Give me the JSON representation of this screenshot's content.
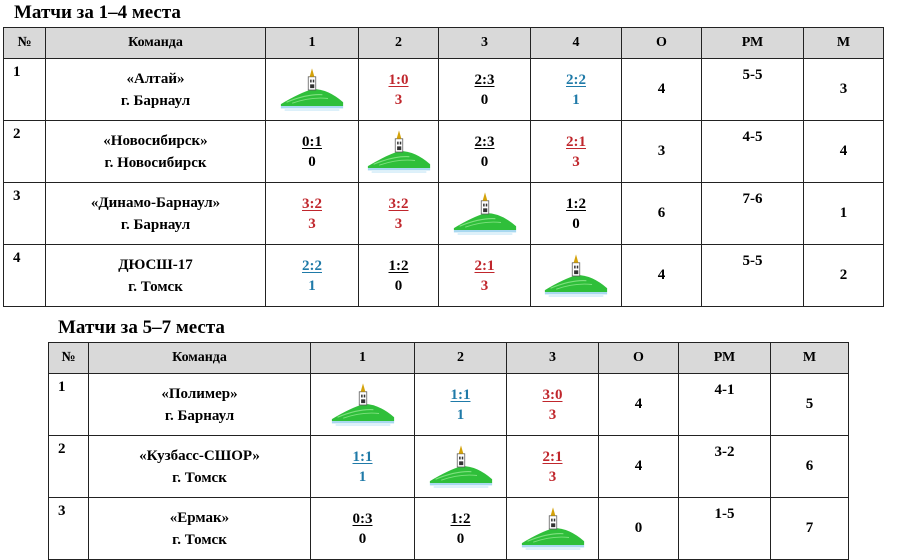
{
  "table1": {
    "title": "Матчи за 1–4 места",
    "headers": [
      "№",
      "Команда",
      "1",
      "2",
      "3",
      "4",
      "О",
      "РМ",
      "М"
    ],
    "rows": [
      {
        "num": "1",
        "team": "«Алтай»",
        "city": "г. Барнаул",
        "cells": [
          null,
          {
            "score": "1:0",
            "pts": "3",
            "color": "red"
          },
          {
            "score": "2:3",
            "pts": "0",
            "color": "black"
          },
          {
            "score": "2:2",
            "pts": "1",
            "color": "blue"
          }
        ],
        "points": "4",
        "goals": "5-5",
        "place": "3"
      },
      {
        "num": "2",
        "team": "«Новосибирск»",
        "city": "г. Новосибирск",
        "cells": [
          {
            "score": "0:1",
            "pts": "0",
            "color": "black"
          },
          null,
          {
            "score": "2:3",
            "pts": "0",
            "color": "black"
          },
          {
            "score": "2:1",
            "pts": "3",
            "color": "red"
          }
        ],
        "points": "3",
        "goals": "4-5",
        "place": "4"
      },
      {
        "num": "3",
        "team": "«Динамо-Барнаул»",
        "city": "г. Барнаул",
        "cells": [
          {
            "score": "3:2",
            "pts": "3",
            "color": "red"
          },
          {
            "score": "3:2",
            "pts": "3",
            "color": "red"
          },
          null,
          {
            "score": "1:2",
            "pts": "0",
            "color": "black"
          }
        ],
        "points": "6",
        "goals": "7-6",
        "place": "1"
      },
      {
        "num": "4",
        "team": "ДЮСШ-17",
        "city": "г. Томск",
        "cells": [
          {
            "score": "2:2",
            "pts": "1",
            "color": "blue"
          },
          {
            "score": "1:2",
            "pts": "0",
            "color": "black"
          },
          {
            "score": "2:1",
            "pts": "3",
            "color": "red"
          },
          null
        ],
        "points": "4",
        "goals": "5-5",
        "place": "2"
      }
    ]
  },
  "table2": {
    "title": "Матчи за 5–7 места",
    "headers": [
      "№",
      "Команда",
      "1",
      "2",
      "3",
      "О",
      "РМ",
      "М"
    ],
    "rows": [
      {
        "num": "1",
        "team": "«Полимер»",
        "city": "г. Барнаул",
        "cells": [
          null,
          {
            "score": "1:1",
            "pts": "1",
            "color": "blue"
          },
          {
            "score": "3:0",
            "pts": "3",
            "color": "red"
          }
        ],
        "points": "4",
        "goals": "4-1",
        "place": "5"
      },
      {
        "num": "2",
        "team": "«Кузбасс-СШОР»",
        "city": "г. Томск",
        "cells": [
          {
            "score": "1:1",
            "pts": "1",
            "color": "blue"
          },
          null,
          {
            "score": "2:1",
            "pts": "3",
            "color": "red"
          }
        ],
        "points": "4",
        "goals": "3-2",
        "place": "6"
      },
      {
        "num": "3",
        "team": "«Ермак»",
        "city": "г. Томск",
        "cells": [
          {
            "score": "0:3",
            "pts": "0",
            "color": "black"
          },
          {
            "score": "1:2",
            "pts": "0",
            "color": "black"
          },
          null
        ],
        "points": "0",
        "goals": "1-5",
        "place": "7"
      }
    ]
  },
  "colors": {
    "red": "#c0262c",
    "blue": "#1f7aa8",
    "header_bg": "#d9d9d9"
  }
}
